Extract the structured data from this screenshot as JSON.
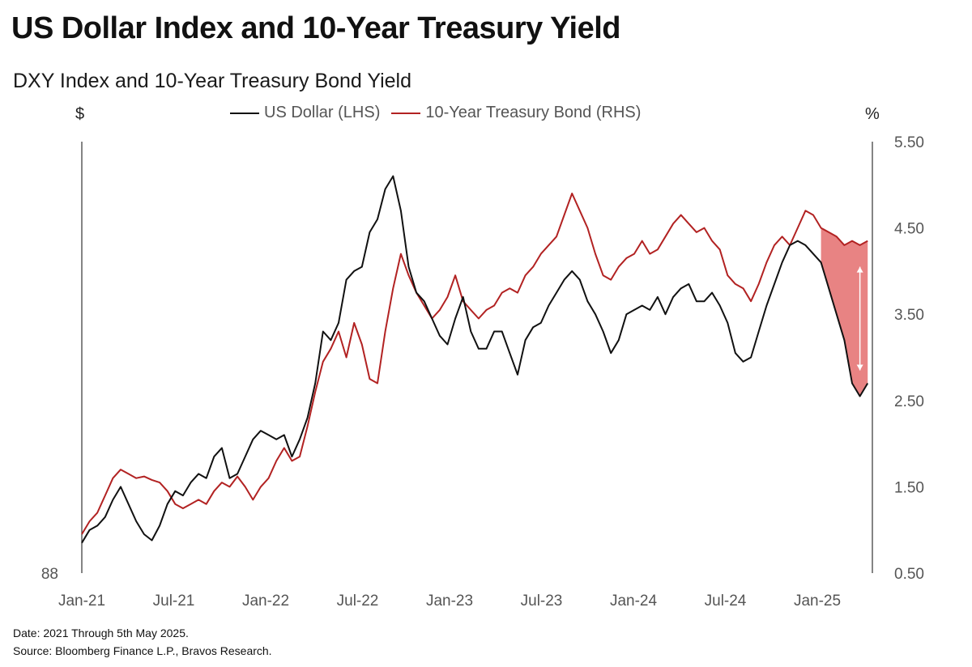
{
  "title": "US Dollar Index and 10-Year Treasury Yield",
  "subtitle": "DXY Index and 10-Year Treasury Bond Yield",
  "left_unit": "$",
  "right_unit": "%",
  "legend": [
    {
      "label": "US Dollar (LHS)",
      "color": "#111111"
    },
    {
      "label": "10-Year Treasury Bond (RHS)",
      "color": "#b22222"
    }
  ],
  "footer": {
    "date_note": "Date: 2021 Through 5th May 2025.",
    "source_note": "Source: Bloomberg Finance L.P., Bravos Research."
  },
  "chart_data": {
    "type": "line",
    "x_ticks": [
      "Jan-21",
      "Jul-21",
      "Jan-22",
      "Jul-22",
      "Jan-23",
      "Jul-23",
      "Jan-24",
      "Jul-24",
      "Jan-25"
    ],
    "left_axis": {
      "tick_labels": [
        "88"
      ],
      "ticks": [
        88
      ]
    },
    "right_axis": {
      "tick_labels": [
        "5.50",
        "4.50",
        "3.50",
        "2.50",
        "1.50",
        "0.50"
      ],
      "ticks": [
        5.5,
        4.5,
        3.5,
        2.5,
        1.5,
        0.5
      ],
      "ylim": [
        0.5,
        5.5
      ]
    },
    "series": [
      {
        "name": "US Dollar (LHS)",
        "color": "#111111",
        "axis": "right",
        "values": [
          [
            0,
            0.85
          ],
          [
            0.05,
            1.0
          ],
          [
            0.1,
            1.05
          ],
          [
            0.15,
            1.15
          ],
          [
            0.2,
            1.35
          ],
          [
            0.25,
            1.5
          ],
          [
            0.3,
            1.3
          ],
          [
            0.35,
            1.1
          ],
          [
            0.4,
            0.95
          ],
          [
            0.45,
            0.88
          ],
          [
            0.5,
            1.05
          ],
          [
            0.55,
            1.3
          ],
          [
            0.6,
            1.45
          ],
          [
            0.65,
            1.4
          ],
          [
            0.7,
            1.55
          ],
          [
            0.75,
            1.65
          ],
          [
            0.8,
            1.6
          ],
          [
            0.85,
            1.85
          ],
          [
            0.9,
            1.95
          ],
          [
            0.95,
            1.6
          ],
          [
            1.0,
            1.65
          ],
          [
            1.05,
            1.85
          ],
          [
            1.1,
            2.05
          ],
          [
            1.15,
            2.15
          ],
          [
            1.2,
            2.1
          ],
          [
            1.25,
            2.05
          ],
          [
            1.3,
            2.1
          ],
          [
            1.35,
            1.85
          ],
          [
            1.4,
            2.05
          ],
          [
            1.45,
            2.3
          ],
          [
            1.5,
            2.7
          ],
          [
            1.55,
            3.3
          ],
          [
            1.6,
            3.2
          ],
          [
            1.65,
            3.4
          ],
          [
            1.7,
            3.9
          ],
          [
            1.75,
            4.0
          ],
          [
            1.8,
            4.05
          ],
          [
            1.85,
            4.45
          ],
          [
            1.9,
            4.6
          ],
          [
            1.95,
            4.95
          ],
          [
            2.0,
            5.1
          ],
          [
            2.05,
            4.7
          ],
          [
            2.1,
            4.05
          ],
          [
            2.15,
            3.75
          ],
          [
            2.2,
            3.65
          ],
          [
            2.25,
            3.45
          ],
          [
            2.3,
            3.25
          ],
          [
            2.35,
            3.15
          ],
          [
            2.4,
            3.45
          ],
          [
            2.45,
            3.7
          ],
          [
            2.5,
            3.3
          ],
          [
            2.55,
            3.1
          ],
          [
            2.6,
            3.1
          ],
          [
            2.65,
            3.3
          ],
          [
            2.7,
            3.3
          ],
          [
            2.75,
            3.05
          ],
          [
            2.8,
            2.8
          ],
          [
            2.85,
            3.2
          ],
          [
            2.9,
            3.35
          ],
          [
            2.95,
            3.4
          ],
          [
            3.0,
            3.6
          ],
          [
            3.05,
            3.75
          ],
          [
            3.1,
            3.9
          ],
          [
            3.15,
            4.0
          ],
          [
            3.2,
            3.9
          ],
          [
            3.25,
            3.65
          ],
          [
            3.3,
            3.5
          ],
          [
            3.35,
            3.3
          ],
          [
            3.4,
            3.05
          ],
          [
            3.45,
            3.2
          ],
          [
            3.5,
            3.5
          ],
          [
            3.55,
            3.55
          ],
          [
            3.6,
            3.6
          ],
          [
            3.65,
            3.55
          ],
          [
            3.7,
            3.7
          ],
          [
            3.75,
            3.5
          ],
          [
            3.8,
            3.7
          ],
          [
            3.85,
            3.8
          ],
          [
            3.9,
            3.85
          ],
          [
            3.95,
            3.65
          ],
          [
            4.0,
            3.65
          ],
          [
            4.05,
            3.75
          ],
          [
            4.1,
            3.6
          ],
          [
            4.15,
            3.4
          ],
          [
            4.2,
            3.05
          ],
          [
            4.25,
            2.95
          ],
          [
            4.3,
            3.0
          ],
          [
            4.35,
            3.3
          ],
          [
            4.4,
            3.6
          ],
          [
            4.45,
            3.85
          ],
          [
            4.5,
            4.1
          ],
          [
            4.55,
            4.3
          ],
          [
            4.6,
            4.35
          ],
          [
            4.65,
            4.3
          ],
          [
            4.7,
            4.2
          ],
          [
            4.75,
            4.1
          ],
          [
            4.8,
            3.8
          ],
          [
            4.85,
            3.5
          ],
          [
            4.9,
            3.2
          ],
          [
            4.95,
            2.7
          ],
          [
            5.0,
            2.55
          ],
          [
            5.05,
            2.7
          ]
        ]
      },
      {
        "name": "10-Year Treasury Bond (RHS)",
        "color": "#b22222",
        "axis": "right",
        "values": [
          [
            0,
            0.95
          ],
          [
            0.05,
            1.1
          ],
          [
            0.1,
            1.2
          ],
          [
            0.15,
            1.4
          ],
          [
            0.2,
            1.6
          ],
          [
            0.25,
            1.7
          ],
          [
            0.3,
            1.65
          ],
          [
            0.35,
            1.6
          ],
          [
            0.4,
            1.62
          ],
          [
            0.45,
            1.58
          ],
          [
            0.5,
            1.55
          ],
          [
            0.55,
            1.45
          ],
          [
            0.6,
            1.3
          ],
          [
            0.65,
            1.25
          ],
          [
            0.7,
            1.3
          ],
          [
            0.75,
            1.35
          ],
          [
            0.8,
            1.3
          ],
          [
            0.85,
            1.45
          ],
          [
            0.9,
            1.55
          ],
          [
            0.95,
            1.5
          ],
          [
            1.0,
            1.62
          ],
          [
            1.05,
            1.5
          ],
          [
            1.1,
            1.35
          ],
          [
            1.15,
            1.5
          ],
          [
            1.2,
            1.6
          ],
          [
            1.25,
            1.8
          ],
          [
            1.3,
            1.95
          ],
          [
            1.35,
            1.8
          ],
          [
            1.4,
            1.85
          ],
          [
            1.45,
            2.2
          ],
          [
            1.5,
            2.6
          ],
          [
            1.55,
            2.95
          ],
          [
            1.6,
            3.1
          ],
          [
            1.65,
            3.3
          ],
          [
            1.7,
            3.0
          ],
          [
            1.75,
            3.4
          ],
          [
            1.8,
            3.15
          ],
          [
            1.85,
            2.75
          ],
          [
            1.9,
            2.7
          ],
          [
            1.95,
            3.3
          ],
          [
            2.0,
            3.8
          ],
          [
            2.05,
            4.2
          ],
          [
            2.1,
            3.95
          ],
          [
            2.15,
            3.75
          ],
          [
            2.2,
            3.6
          ],
          [
            2.25,
            3.45
          ],
          [
            2.3,
            3.55
          ],
          [
            2.35,
            3.7
          ],
          [
            2.4,
            3.95
          ],
          [
            2.45,
            3.65
          ],
          [
            2.5,
            3.55
          ],
          [
            2.55,
            3.45
          ],
          [
            2.6,
            3.55
          ],
          [
            2.65,
            3.6
          ],
          [
            2.7,
            3.75
          ],
          [
            2.75,
            3.8
          ],
          [
            2.8,
            3.75
          ],
          [
            2.85,
            3.95
          ],
          [
            2.9,
            4.05
          ],
          [
            2.95,
            4.2
          ],
          [
            3.0,
            4.3
          ],
          [
            3.05,
            4.4
          ],
          [
            3.1,
            4.65
          ],
          [
            3.15,
            4.9
          ],
          [
            3.2,
            4.7
          ],
          [
            3.25,
            4.5
          ],
          [
            3.3,
            4.2
          ],
          [
            3.35,
            3.95
          ],
          [
            3.4,
            3.9
          ],
          [
            3.45,
            4.05
          ],
          [
            3.5,
            4.15
          ],
          [
            3.55,
            4.2
          ],
          [
            3.6,
            4.35
          ],
          [
            3.65,
            4.2
          ],
          [
            3.7,
            4.25
          ],
          [
            3.75,
            4.4
          ],
          [
            3.8,
            4.55
          ],
          [
            3.85,
            4.65
          ],
          [
            3.9,
            4.55
          ],
          [
            3.95,
            4.45
          ],
          [
            4.0,
            4.5
          ],
          [
            4.05,
            4.35
          ],
          [
            4.1,
            4.25
          ],
          [
            4.15,
            3.95
          ],
          [
            4.2,
            3.85
          ],
          [
            4.25,
            3.8
          ],
          [
            4.3,
            3.65
          ],
          [
            4.35,
            3.85
          ],
          [
            4.4,
            4.1
          ],
          [
            4.45,
            4.3
          ],
          [
            4.5,
            4.4
          ],
          [
            4.55,
            4.3
          ],
          [
            4.6,
            4.5
          ],
          [
            4.65,
            4.7
          ],
          [
            4.7,
            4.65
          ],
          [
            4.75,
            4.5
          ],
          [
            4.8,
            4.45
          ],
          [
            4.85,
            4.4
          ],
          [
            4.9,
            4.3
          ],
          [
            4.95,
            4.35
          ],
          [
            5.0,
            4.3
          ],
          [
            5.05,
            4.35
          ]
        ]
      }
    ],
    "x_domain": [
      0,
      5.08
    ],
    "grid": false,
    "legend_position": "top-center"
  }
}
